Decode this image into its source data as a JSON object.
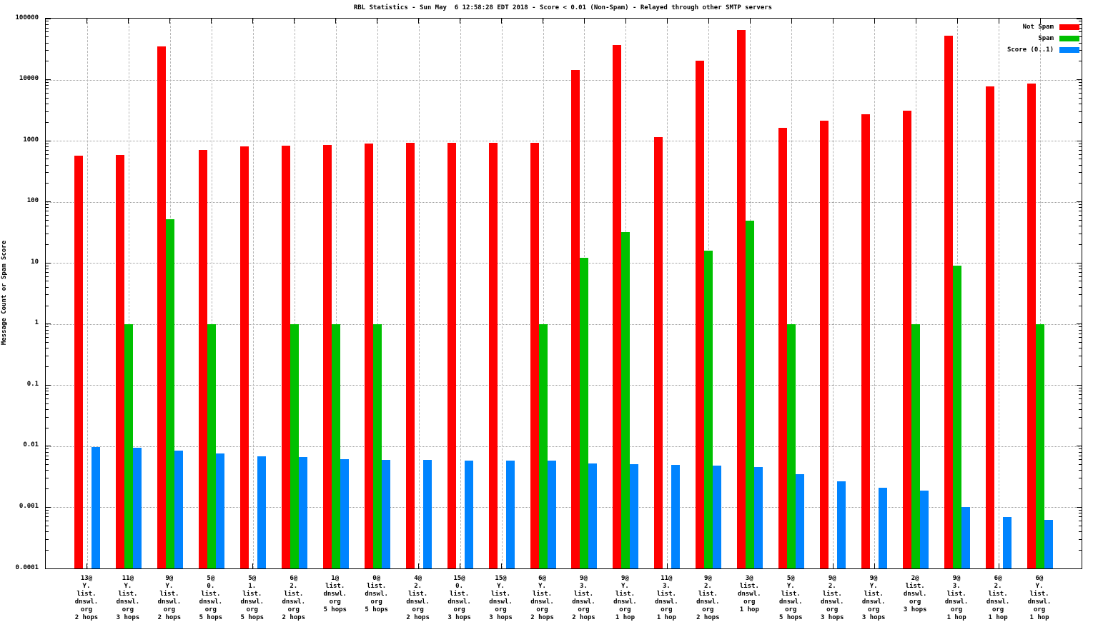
{
  "title": "RBL Statistics - Sun May  6 12:58:28 EDT 2018 - Score < 0.01 (Non-Spam) - Relayed through other SMTP servers",
  "chart_data": {
    "type": "bar",
    "title": "RBL Statistics - Sun May  6 12:58:28 EDT 2018 - Score < 0.01 (Non-Spam) - Relayed through other SMTP servers",
    "xlabel": "",
    "ylabel": "Message Count or Spam Score",
    "y_scale": "log",
    "ylim": [
      0.0001,
      100000
    ],
    "y_tick_labels": [
      "100000",
      "10000",
      "1000",
      "100",
      "10",
      "1",
      "0.1",
      "0.01",
      "0.001",
      "0.0001"
    ],
    "grid": true,
    "legend_position": "top-right",
    "categories": [
      "13@\nY.\nlist.\ndnswl.\norg\n2 hops",
      "11@\nY.\nlist.\ndnswl.\norg\n3 hops",
      "9@\nY.\nlist.\ndnswl.\norg\n2 hops",
      "5@\n0.\nlist.\ndnswl.\norg\n5 hops",
      "5@\n1.\nlist.\ndnswl.\norg\n5 hops",
      "6@\n2.\nlist.\ndnswl.\norg\n2 hops",
      "1@\nlist.\ndnswl.\norg\n5 hops",
      "0@\nlist.\ndnswl.\norg\n5 hops",
      "4@\n2.\nlist.\ndnswl.\norg\n2 hops",
      "15@\n0.\nlist.\ndnswl.\norg\n3 hops",
      "15@\nY.\nlist.\ndnswl.\norg\n3 hops",
      "6@\nY.\nlist.\ndnswl.\norg\n2 hops",
      "9@\n3.\nlist.\ndnswl.\norg\n2 hops",
      "9@\nY.\nlist.\ndnswl.\norg\n1 hop",
      "11@\n3.\nlist.\ndnswl.\norg\n1 hop",
      "9@\n2.\nlist.\ndnswl.\norg\n2 hops",
      "3@\nlist.\ndnswl.\norg\n1 hop",
      "5@\nY.\nlist.\ndnswl.\norg\n5 hops",
      "9@\n2.\nlist.\ndnswl.\norg\n3 hops",
      "9@\nY.\nlist.\ndnswl.\norg\n3 hops",
      "2@\nlist.\ndnswl.\norg\n3 hops",
      "9@\n3.\nlist.\ndnswl.\norg\n1 hop",
      "6@\n2.\nlist.\ndnswl.\norg\n1 hop",
      "6@\nY.\nlist.\ndnswl.\norg\n1 hop"
    ],
    "series": [
      {
        "name": "Not Spam",
        "color": "#ff0000",
        "values": [
          570,
          590,
          35000,
          710,
          820,
          840,
          850,
          900,
          920,
          920,
          920,
          930,
          14500,
          37000,
          1150,
          20500,
          65000,
          1620,
          2120,
          2700,
          3100,
          52000,
          7800,
          8700
        ]
      },
      {
        "name": "Spam",
        "color": "#00c000",
        "values": [
          null,
          1,
          52,
          1,
          null,
          1,
          1,
          1,
          null,
          null,
          null,
          1,
          12,
          32,
          null,
          16,
          49,
          1,
          null,
          null,
          1,
          9,
          null,
          1
        ]
      },
      {
        "name": "Score (0..1)",
        "color": "#0084ff",
        "values": [
          0.0097,
          0.0095,
          0.0086,
          0.0077,
          0.0068,
          0.0067,
          0.0061,
          0.006,
          0.006,
          0.0059,
          0.0059,
          0.0058,
          0.0052,
          0.0051,
          0.0049,
          0.0048,
          0.0046,
          0.0035,
          0.0027,
          0.0021,
          0.0019,
          0.001,
          0.0007,
          0.00063
        ]
      }
    ]
  }
}
